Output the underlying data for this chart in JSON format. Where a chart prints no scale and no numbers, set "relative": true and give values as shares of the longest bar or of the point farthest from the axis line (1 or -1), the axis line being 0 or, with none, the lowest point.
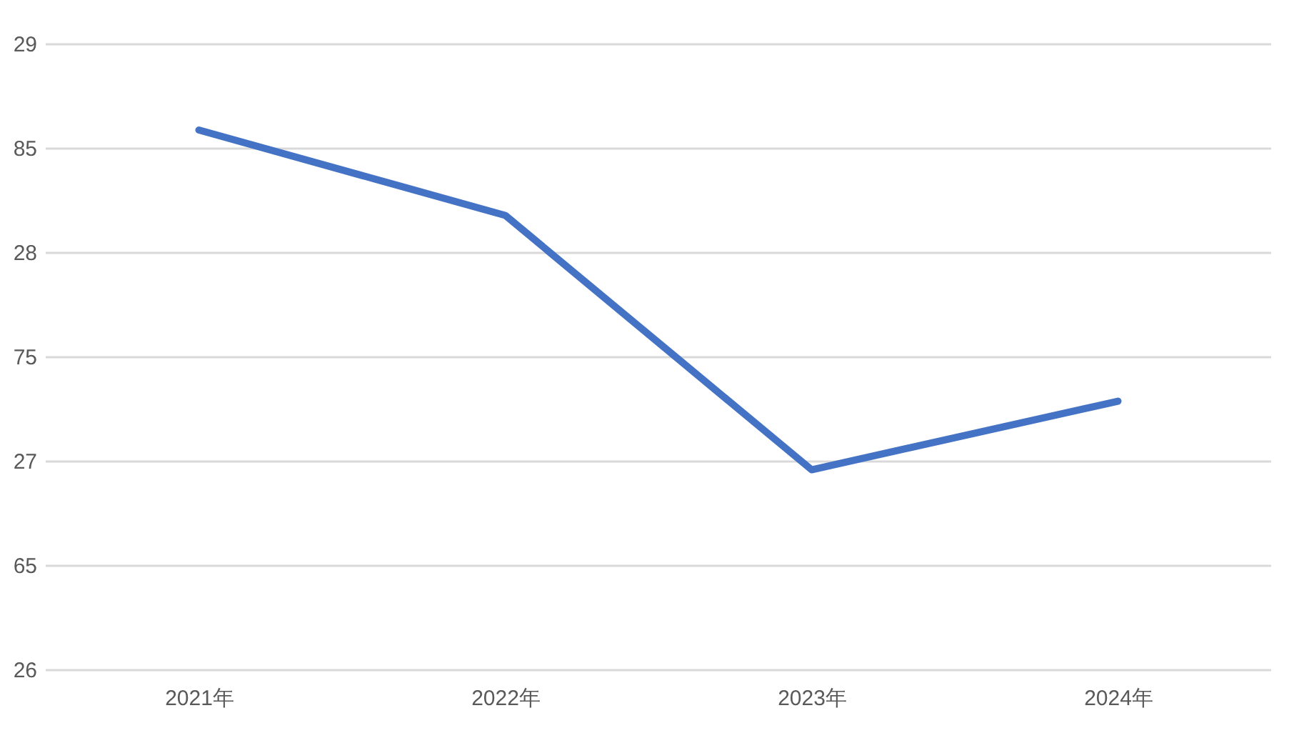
{
  "chart_data": {
    "type": "line",
    "categories": [
      "2021年",
      "2022年",
      "2023年",
      "2024年"
    ],
    "values": [
      1,
      0.842,
      0.371,
      0.498
    ],
    "color": "#4472c4",
    "relative": true,
    "annotations": [
      "29",
      "85",
      "28",
      "75",
      "27",
      "65",
      "26"
    ],
    "grid": "y"
  }
}
